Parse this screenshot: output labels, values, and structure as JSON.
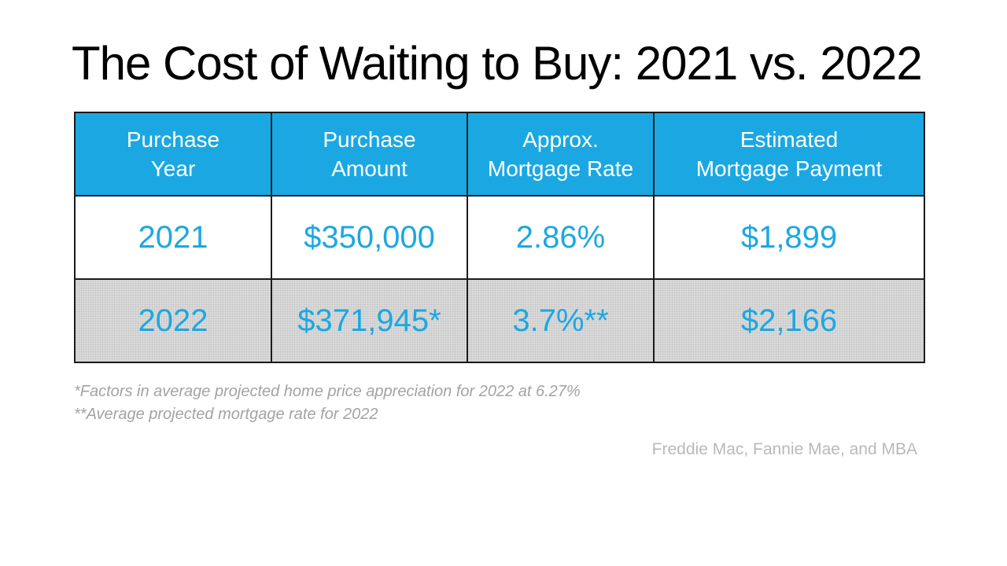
{
  "slide": {
    "title": "The Cost of Waiting to Buy: 2021 vs. 2022",
    "footnote_1": "*Factors in average projected home price appreciation for 2022 at 6.27%",
    "footnote_2": "**Average projected mortgage rate for 2022",
    "source": "Freddie Mac, Fannie Mae, and MBA"
  },
  "table": {
    "headers": [
      {
        "line1": "Purchase",
        "line2": "Year"
      },
      {
        "line1": "Purchase",
        "line2": "Amount"
      },
      {
        "line1": "Approx.",
        "line2": "Mortgage Rate"
      },
      {
        "line1": "Estimated",
        "line2": "Mortgage Payment"
      }
    ],
    "rows": [
      {
        "cells": [
          "2021",
          "$350,000",
          "2.86%",
          "$1,899"
        ]
      },
      {
        "cells": [
          "2022",
          "$371,945*",
          "3.7%**",
          "$2,166"
        ]
      }
    ]
  },
  "colors": {
    "title_text": "#000000",
    "header_fill": "#1BA8E2",
    "header_text": "#FFFFFF",
    "data_text": "#1BA8E2",
    "alt_row_fill": "#DADADA",
    "table_border": "#1B1B1B",
    "footnote_text": "#A3A3A3",
    "source_text": "#B9B9B9",
    "background": "#FFFFFF"
  }
}
